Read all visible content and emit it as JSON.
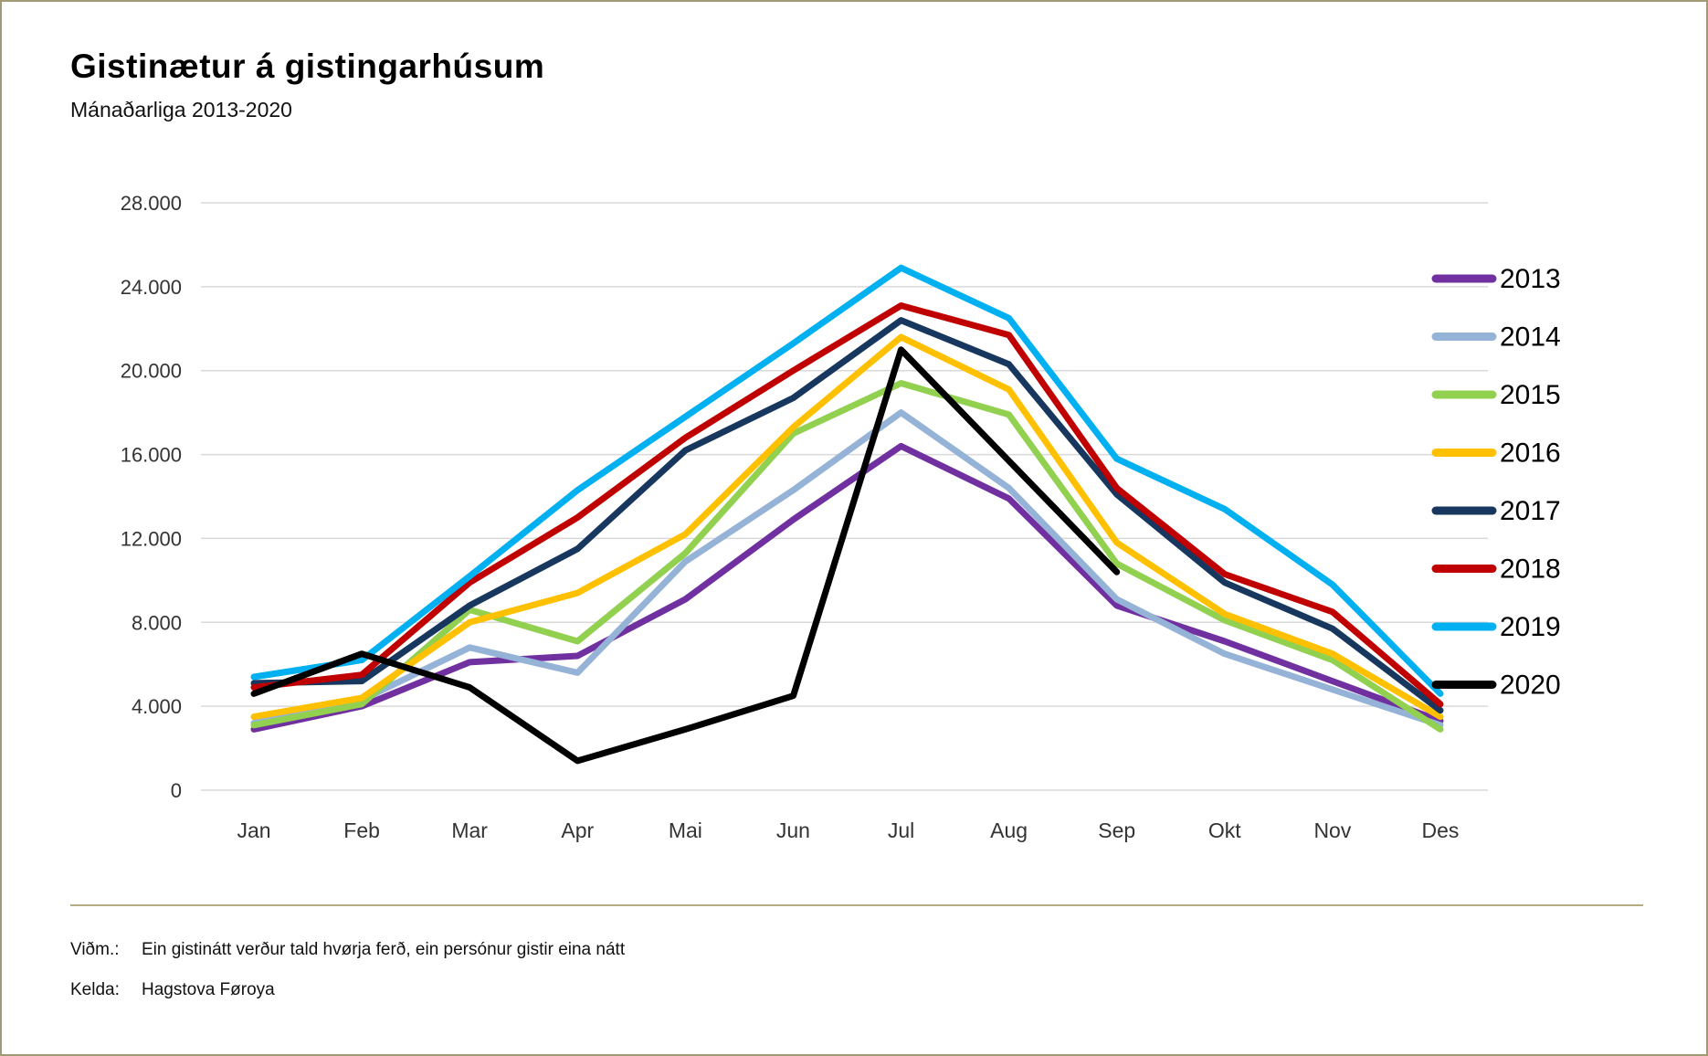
{
  "header": {
    "title": "Gistinætur á gistingarhúsum",
    "subtitle": "Mánaðarliga 2013-2020"
  },
  "chart_data": {
    "type": "line",
    "title": "Gistinætur á gistingarhúsum",
    "subtitle": "Mánaðarliga 2013-2020",
    "categories": [
      "Jan",
      "Feb",
      "Mar",
      "Apr",
      "Mai",
      "Jun",
      "Jul",
      "Aug",
      "Sep",
      "Okt",
      "Nov",
      "Des"
    ],
    "y_ticks": [
      "0",
      "4.000",
      "8.000",
      "12.000",
      "16.000",
      "20.000",
      "24.000",
      "28.000"
    ],
    "ylim": [
      0,
      28000
    ],
    "grid": true,
    "legend_position": "right",
    "grid_color": "#d9d9d9",
    "axis_text_color": "#333333",
    "series": [
      {
        "name": "2013",
        "color": "#7030A0",
        "values": [
          2900,
          4000,
          6100,
          6400,
          9100,
          12900,
          16400,
          13900,
          8800,
          7100,
          5200,
          3300
        ]
      },
      {
        "name": "2014",
        "color": "#95B3D7",
        "values": [
          3200,
          4300,
          6800,
          5600,
          10900,
          14300,
          18000,
          14400,
          9100,
          6500,
          4800,
          3100
        ]
      },
      {
        "name": "2015",
        "color": "#92D050",
        "values": [
          3100,
          4100,
          8600,
          7100,
          11300,
          17000,
          19400,
          17900,
          10800,
          8100,
          6200,
          2900
        ]
      },
      {
        "name": "2016",
        "color": "#FFC000",
        "values": [
          3500,
          4400,
          8000,
          9400,
          12200,
          17300,
          21600,
          19100,
          11800,
          8400,
          6500,
          3500
        ]
      },
      {
        "name": "2017",
        "color": "#17375E",
        "values": [
          5100,
          5200,
          8800,
          11500,
          16200,
          18700,
          22400,
          20300,
          14100,
          9900,
          7700,
          3800
        ]
      },
      {
        "name": "2018",
        "color": "#C00000",
        "values": [
          4900,
          5500,
          9900,
          13000,
          16800,
          20000,
          23100,
          21700,
          14400,
          10300,
          8500,
          4100
        ]
      },
      {
        "name": "2019",
        "color": "#00B0F0",
        "values": [
          5400,
          6200,
          10200,
          14300,
          17800,
          21300,
          24900,
          22500,
          15800,
          13400,
          9800,
          4600
        ]
      },
      {
        "name": "2020",
        "color": "#000000",
        "values": [
          4600,
          6500,
          4900,
          1400,
          2900,
          4500,
          21000,
          15700,
          10400
        ]
      }
    ]
  },
  "footer": {
    "note_label": "Viðm.:",
    "note": "Ein gistinátt verður tald hvørja ferð, ein persónur gistir eina nátt",
    "source_label": "Kelda:",
    "source": "Hagstova Føroya"
  }
}
